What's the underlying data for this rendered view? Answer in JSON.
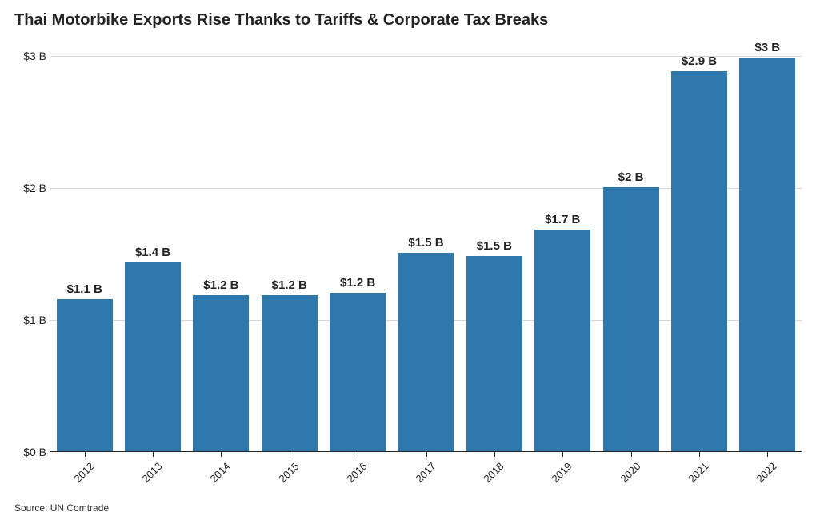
{
  "chart": {
    "type": "bar",
    "title": "Thai Motorbike Exports Rise Thanks to Tariffs & Corporate Tax Breaks",
    "source": "Source: UN Comtrade",
    "categories": [
      "2012",
      "2013",
      "2014",
      "2015",
      "2016",
      "2017",
      "2018",
      "2019",
      "2020",
      "2021",
      "2022"
    ],
    "values": [
      1.15,
      1.43,
      1.18,
      1.18,
      1.2,
      1.5,
      1.48,
      1.68,
      2.0,
      2.88,
      2.98
    ],
    "value_labels": [
      "$1.1 B",
      "$1.4 B",
      "$1.2 B",
      "$1.2 B",
      "$1.2 B",
      "$1.5 B",
      "$1.5 B",
      "$1.7 B",
      "$2 B",
      "$2.9 B",
      "$3 B"
    ],
    "bar_color": "#2e78ac",
    "background_color": "#ffffff",
    "grid_color": "#d8d8d8",
    "axis_line_color": "#222222",
    "text_color": "#222222",
    "title_fontsize": 20,
    "title_fontweight": 700,
    "label_fontsize": 15,
    "label_fontweight": 700,
    "axis_fontsize": 14,
    "xaxis_fontsize": 13,
    "source_fontsize": 12,
    "ylim": [
      0,
      3.15
    ],
    "yticks": [
      0,
      1,
      2,
      3
    ],
    "ytick_labels": [
      "$0 B",
      "$1 B",
      "$2 B",
      "$3 B"
    ],
    "bar_width_ratio": 0.82,
    "xaxis_rotation_deg": -45
  }
}
